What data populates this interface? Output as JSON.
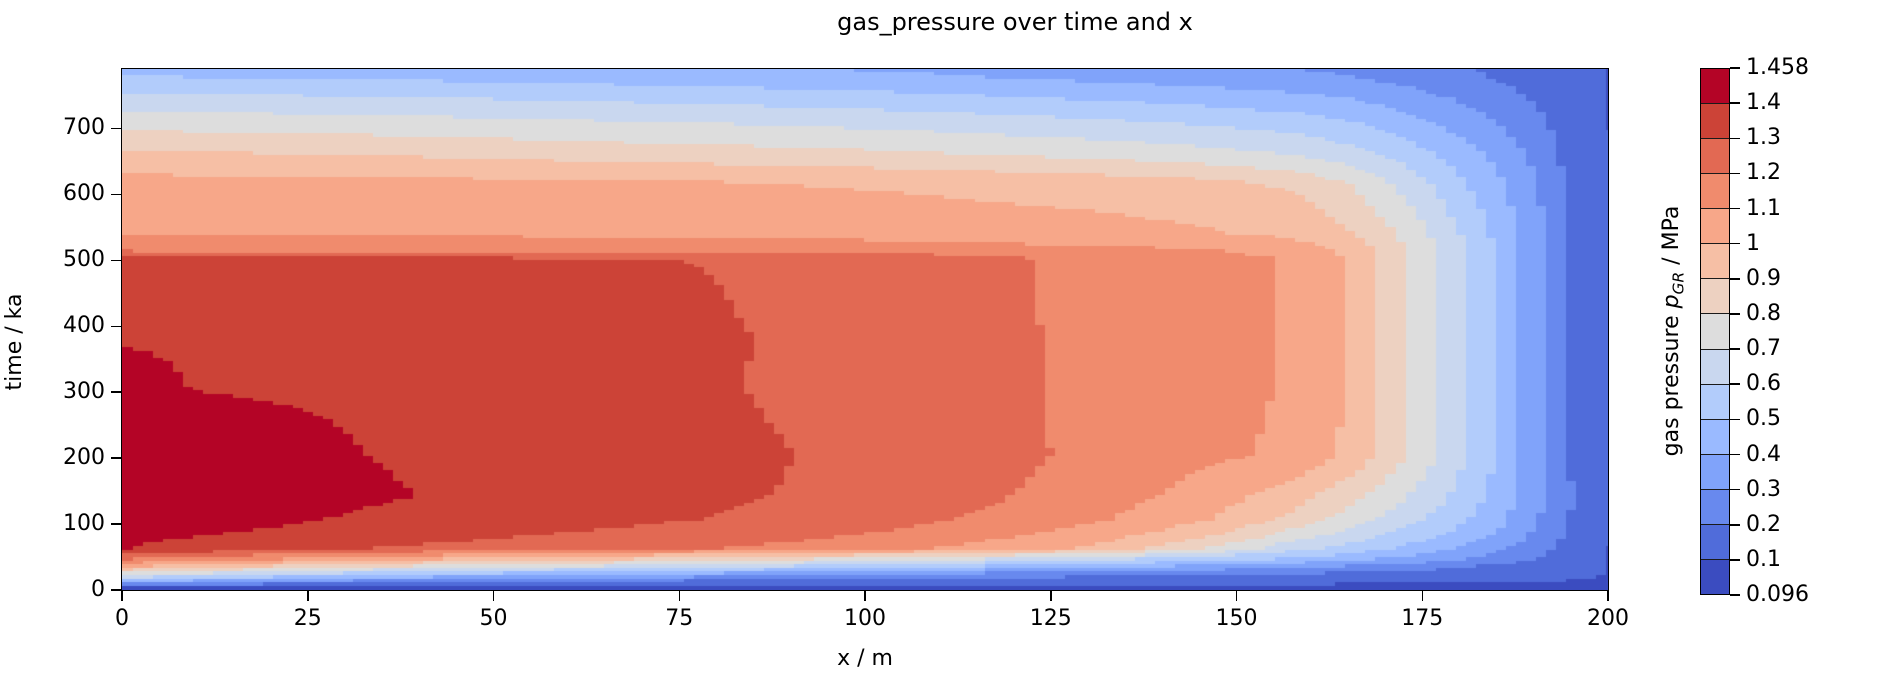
{
  "title": "gas_pressure over time and x",
  "axes": {
    "x_label": "x / m",
    "y_label": "time / ka",
    "x_range": [
      0,
      200
    ],
    "y_range": [
      0,
      790
    ],
    "x_ticks": [
      {
        "value": 0,
        "label": "0"
      },
      {
        "value": 25,
        "label": "25"
      },
      {
        "value": 50,
        "label": "50"
      },
      {
        "value": 75,
        "label": "75"
      },
      {
        "value": 100,
        "label": "100"
      },
      {
        "value": 125,
        "label": "125"
      },
      {
        "value": 150,
        "label": "150"
      },
      {
        "value": 175,
        "label": "175"
      },
      {
        "value": 200,
        "label": "200"
      }
    ],
    "y_ticks": [
      {
        "value": 0,
        "label": "0"
      },
      {
        "value": 100,
        "label": "100"
      },
      {
        "value": 200,
        "label": "200"
      },
      {
        "value": 300,
        "label": "300"
      },
      {
        "value": 400,
        "label": "400"
      },
      {
        "value": 500,
        "label": "500"
      },
      {
        "value": 600,
        "label": "600"
      },
      {
        "value": 700,
        "label": "700"
      }
    ]
  },
  "colorbar": {
    "tick_labels_top_to_bottom": [
      "1.458",
      "1.4",
      "1.3",
      "1.2",
      "1.1",
      "1",
      "0.9",
      "0.8",
      "0.7",
      "0.6",
      "0.5",
      "0.4",
      "0.3",
      "0.2",
      "0.1",
      "0.096"
    ],
    "label_parts": {
      "prefix": "gas pressure ",
      "symbol": "p",
      "subscript": "GR",
      "suffix": " / MPa"
    }
  },
  "chart_data": {
    "type": "filled_contour_heatmap",
    "title": "gas_pressure over time and x",
    "xlabel": "x / m",
    "ylabel": "time / ka",
    "zlabel": "gas pressure pGR / MPa",
    "xlim": [
      0,
      200
    ],
    "ylim": [
      0,
      790
    ],
    "zmin": 0.096,
    "zmax": 1.458,
    "levels": [
      0.096,
      0.1,
      0.2,
      0.3,
      0.4,
      0.5,
      0.6,
      0.7,
      0.8,
      0.9,
      1.0,
      1.1,
      1.2,
      1.3,
      1.4,
      1.458
    ],
    "band_colors_low_to_high": [
      "#3B4CC0",
      "#506CDA",
      "#6889EE",
      "#80A3FA",
      "#9ABAFF",
      "#B2CCFB",
      "#C9D7EF",
      "#DDDDDD",
      "#EDD1C1",
      "#F6BFA5",
      "#F7A789",
      "#F08B6D",
      "#E26953",
      "#CC4337",
      "#B40426"
    ],
    "x": [
      0,
      10,
      25,
      40,
      55,
      70,
      80,
      90,
      105,
      123,
      131,
      145,
      157,
      165,
      172,
      178,
      184,
      190,
      196,
      200
    ],
    "t": [
      0,
      6,
      14,
      22,
      32,
      45,
      60,
      80,
      105,
      140,
      200,
      300,
      380,
      450,
      500,
      512,
      538,
      575,
      615,
      660,
      705,
      745,
      775,
      790
    ],
    "values": [
      [
        0.096,
        0.096,
        0.096,
        0.096,
        0.096,
        0.096,
        0.096,
        0.096,
        0.096,
        0.096,
        0.096,
        0.096,
        0.096,
        0.096,
        0.096,
        0.096,
        0.096,
        0.096,
        0.096,
        0.096
      ],
      [
        0.3,
        0.24,
        0.18,
        0.15,
        0.13,
        0.12,
        0.115,
        0.11,
        0.107,
        0.104,
        0.103,
        0.102,
        0.101,
        0.1,
        0.1,
        0.099,
        0.099,
        0.098,
        0.097,
        0.097
      ],
      [
        0.55,
        0.48,
        0.4,
        0.34,
        0.29,
        0.26,
        0.24,
        0.22,
        0.2,
        0.17,
        0.16,
        0.15,
        0.14,
        0.13,
        0.12,
        0.115,
        0.11,
        0.105,
        0.1,
        0.097
      ],
      [
        0.78,
        0.71,
        0.62,
        0.54,
        0.48,
        0.43,
        0.4,
        0.37,
        0.33,
        0.28,
        0.26,
        0.23,
        0.21,
        0.19,
        0.17,
        0.16,
        0.14,
        0.12,
        0.105,
        0.097
      ],
      [
        1.0,
        0.94,
        0.85,
        0.77,
        0.71,
        0.66,
        0.62,
        0.58,
        0.52,
        0.45,
        0.42,
        0.37,
        0.32,
        0.28,
        0.25,
        0.22,
        0.18,
        0.15,
        0.11,
        0.097
      ],
      [
        1.22,
        1.17,
        1.1,
        1.03,
        0.97,
        0.91,
        0.87,
        0.83,
        0.77,
        0.68,
        0.64,
        0.57,
        0.5,
        0.44,
        0.38,
        0.33,
        0.27,
        0.2,
        0.125,
        0.098
      ],
      [
        1.4,
        1.37,
        1.315,
        1.285,
        1.255,
        1.225,
        1.2,
        1.17,
        1.12,
        1.03,
        0.97,
        0.8,
        0.64,
        0.56,
        0.48,
        0.41,
        0.33,
        0.235,
        0.128,
        0.098
      ],
      [
        1.415,
        1.403,
        1.372,
        1.335,
        1.3,
        1.272,
        1.252,
        1.225,
        1.175,
        1.09,
        1.045,
        0.925,
        0.755,
        0.655,
        0.565,
        0.485,
        0.395,
        0.275,
        0.145,
        0.099
      ],
      [
        1.45,
        1.44,
        1.405,
        1.37,
        1.345,
        1.315,
        1.295,
        1.272,
        1.232,
        1.152,
        1.112,
        1.015,
        0.875,
        0.755,
        0.645,
        0.55,
        0.445,
        0.305,
        0.155,
        0.099
      ],
      [
        1.458,
        1.452,
        1.43,
        1.398,
        1.372,
        1.338,
        1.312,
        1.295,
        1.258,
        1.185,
        1.15,
        1.06,
        0.945,
        0.83,
        0.705,
        0.6,
        0.475,
        0.325,
        0.165,
        0.1
      ],
      [
        1.45,
        1.445,
        1.415,
        1.385,
        1.372,
        1.342,
        1.317,
        1.3,
        1.27,
        1.205,
        1.175,
        1.118,
        1.085,
        0.97,
        0.805,
        0.66,
        0.505,
        0.33,
        0.135,
        0.099
      ],
      [
        1.41,
        1.398,
        1.392,
        1.383,
        1.358,
        1.328,
        1.306,
        1.288,
        1.262,
        1.2,
        1.178,
        1.128,
        1.092,
        0.985,
        0.81,
        0.655,
        0.495,
        0.322,
        0.134,
        0.099
      ],
      [
        1.398,
        1.396,
        1.392,
        1.386,
        1.362,
        1.332,
        1.308,
        1.288,
        1.262,
        1.2,
        1.177,
        1.128,
        1.093,
        0.988,
        0.815,
        0.658,
        0.498,
        0.324,
        0.134,
        0.099
      ],
      [
        1.352,
        1.35,
        1.347,
        1.342,
        1.33,
        1.313,
        1.3,
        1.283,
        1.257,
        1.198,
        1.175,
        1.128,
        1.094,
        0.99,
        0.818,
        0.66,
        0.5,
        0.327,
        0.135,
        0.099
      ],
      [
        1.315,
        1.314,
        1.312,
        1.308,
        1.304,
        1.302,
        1.297,
        1.282,
        1.256,
        1.196,
        1.173,
        1.128,
        1.093,
        0.99,
        0.82,
        0.662,
        0.502,
        0.332,
        0.136,
        0.099
      ],
      [
        1.195,
        1.194,
        1.192,
        1.19,
        1.187,
        1.183,
        1.179,
        1.174,
        1.163,
        1.14,
        1.13,
        1.112,
        1.06,
        0.968,
        0.812,
        0.656,
        0.5,
        0.331,
        0.136,
        0.099
      ],
      [
        1.095,
        1.093,
        1.09,
        1.086,
        1.081,
        1.075,
        1.07,
        1.064,
        1.054,
        1.035,
        1.027,
        1.008,
        0.978,
        0.9,
        0.775,
        0.635,
        0.487,
        0.325,
        0.135,
        0.099
      ],
      [
        1.065,
        1.063,
        1.06,
        1.056,
        1.051,
        1.045,
        1.04,
        1.034,
        1.024,
        1.005,
        0.997,
        0.978,
        0.945,
        0.855,
        0.725,
        0.595,
        0.462,
        0.313,
        0.133,
        0.099
      ],
      [
        1.035,
        1.033,
        1.029,
        1.024,
        1.018,
        1.01,
        1.004,
        0.997,
        0.985,
        0.962,
        0.952,
        0.925,
        0.88,
        0.79,
        0.665,
        0.545,
        0.428,
        0.295,
        0.129,
        0.099
      ],
      [
        0.91,
        0.905,
        0.895,
        0.882,
        0.866,
        0.848,
        0.838,
        0.828,
        0.81,
        0.778,
        0.764,
        0.732,
        0.692,
        0.635,
        0.555,
        0.47,
        0.378,
        0.266,
        0.124,
        0.099
      ],
      [
        0.765,
        0.76,
        0.75,
        0.738,
        0.724,
        0.708,
        0.698,
        0.688,
        0.67,
        0.638,
        0.624,
        0.592,
        0.555,
        0.508,
        0.445,
        0.378,
        0.305,
        0.222,
        0.118,
        0.099
      ],
      [
        0.625,
        0.62,
        0.611,
        0.6,
        0.586,
        0.57,
        0.559,
        0.548,
        0.53,
        0.498,
        0.484,
        0.455,
        0.426,
        0.392,
        0.345,
        0.297,
        0.245,
        0.183,
        0.112,
        0.099
      ],
      [
        0.505,
        0.5,
        0.492,
        0.482,
        0.47,
        0.456,
        0.446,
        0.436,
        0.419,
        0.39,
        0.377,
        0.35,
        0.327,
        0.3,
        0.268,
        0.234,
        0.196,
        0.152,
        0.107,
        0.098
      ],
      [
        0.47,
        0.465,
        0.457,
        0.447,
        0.435,
        0.421,
        0.411,
        0.401,
        0.384,
        0.356,
        0.344,
        0.32,
        0.3,
        0.276,
        0.247,
        0.217,
        0.183,
        0.143,
        0.105,
        0.098
      ]
    ]
  }
}
